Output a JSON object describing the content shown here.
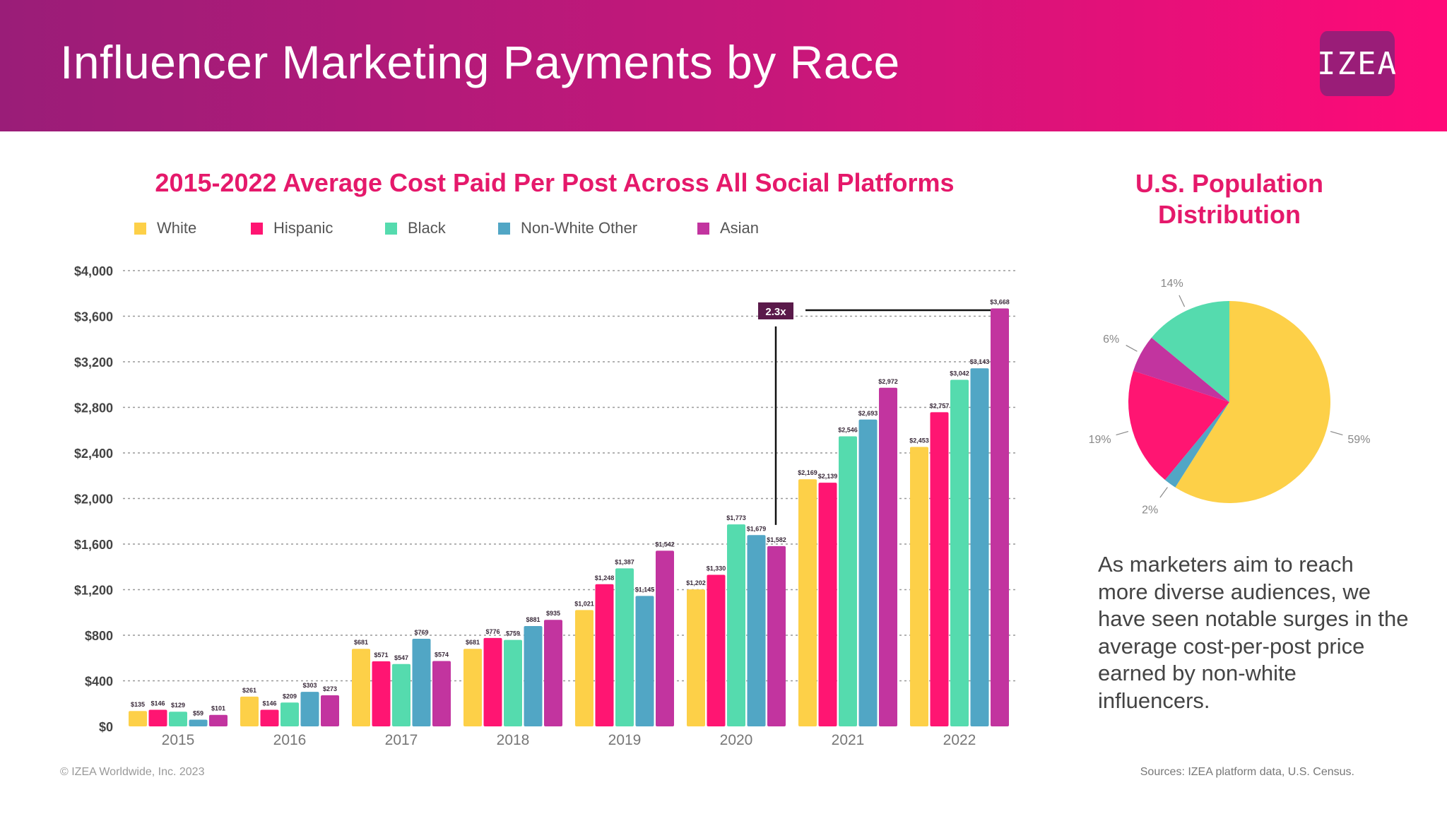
{
  "header": {
    "title": "Influencer Marketing Payments by Race",
    "logo_text": "IZEA"
  },
  "chart_data": [
    {
      "type": "bar",
      "title": "2015-2022 Average Cost Paid Per Post Across All Social Platforms",
      "categories": [
        "2015",
        "2016",
        "2017",
        "2018",
        "2019",
        "2020",
        "2021",
        "2022"
      ],
      "series": [
        {
          "name": "White",
          "color": "#fdd048",
          "values": [
            135,
            261,
            681,
            681,
            1021,
            1202,
            2169,
            2453
          ],
          "labels": [
            "$135",
            "$261",
            "$681",
            "$681",
            "$1,021",
            "$1,202",
            "$2,169",
            "$2,453"
          ]
        },
        {
          "name": "Hispanic",
          "color": "#ff1572",
          "values": [
            146,
            146,
            571,
            776,
            1248,
            1330,
            2139,
            2757
          ],
          "labels": [
            "$146",
            "$146",
            "$571",
            "$776",
            "$1,248",
            "$1,330",
            "$2,139",
            "$2,757"
          ]
        },
        {
          "name": "Black",
          "color": "#55dbae",
          "values": [
            129,
            209,
            547,
            759,
            1387,
            1773,
            2546,
            3042
          ],
          "labels": [
            "$129",
            "$209",
            "$547",
            "$759",
            "$1,387",
            "$1,773",
            "$2,546",
            "$3,042"
          ]
        },
        {
          "name": "Non-White Other",
          "color": "#51a6c5",
          "values": [
            59,
            303,
            769,
            881,
            1145,
            1679,
            2693,
            3143
          ],
          "labels": [
            "$59",
            "$303",
            "$769",
            "$881",
            "$1,145",
            "$1,679",
            "$2,693",
            "$3,143"
          ]
        },
        {
          "name": "Asian",
          "color": "#c2349f",
          "values": [
            101,
            273,
            574,
            935,
            1542,
            1582,
            2972,
            3668
          ],
          "labels": [
            "$101",
            "$273",
            "$574",
            "$935",
            "$1,542",
            "$1,582",
            "$2,972",
            "$3,668"
          ]
        }
      ],
      "ylim": [
        0,
        4000
      ],
      "yticks": [
        0,
        400,
        800,
        1200,
        1600,
        2000,
        2400,
        2800,
        3200,
        3600,
        4000
      ],
      "ytick_labels": [
        "$0",
        "$400",
        "$800",
        "$1,200",
        "$1,600",
        "$2,000",
        "$2,400",
        "$2,800",
        "$3,200",
        "$3,600",
        "$4,000"
      ],
      "grid": true,
      "legend": "top-left",
      "annotation": {
        "text": "2.3x",
        "from": "2020 Asian",
        "to": "2022 Asian",
        "color": "#5a1a4a"
      }
    },
    {
      "type": "pie",
      "title": "U.S. Population Distribution",
      "slices": [
        {
          "name": "White",
          "value": 59,
          "label": "59%",
          "color": "#fdd048"
        },
        {
          "name": "Non-White Other",
          "value": 2,
          "label": "2%",
          "color": "#51a6c5"
        },
        {
          "name": "Hispanic",
          "value": 19,
          "label": "19%",
          "color": "#ff1572"
        },
        {
          "name": "Asian",
          "value": 6,
          "label": "6%",
          "color": "#c2349f"
        },
        {
          "name": "Black",
          "value": 14,
          "label": "14%",
          "color": "#55dbae"
        }
      ]
    }
  ],
  "body_text": "As marketers aim to reach more diverse audiences, we have seen notable surges in the average cost-per-post price earned by non-white influencers.",
  "footer": {
    "copyright": "© IZEA Worldwide, Inc. 2023",
    "sources": "Sources: IZEA platform data, U.S. Census."
  }
}
